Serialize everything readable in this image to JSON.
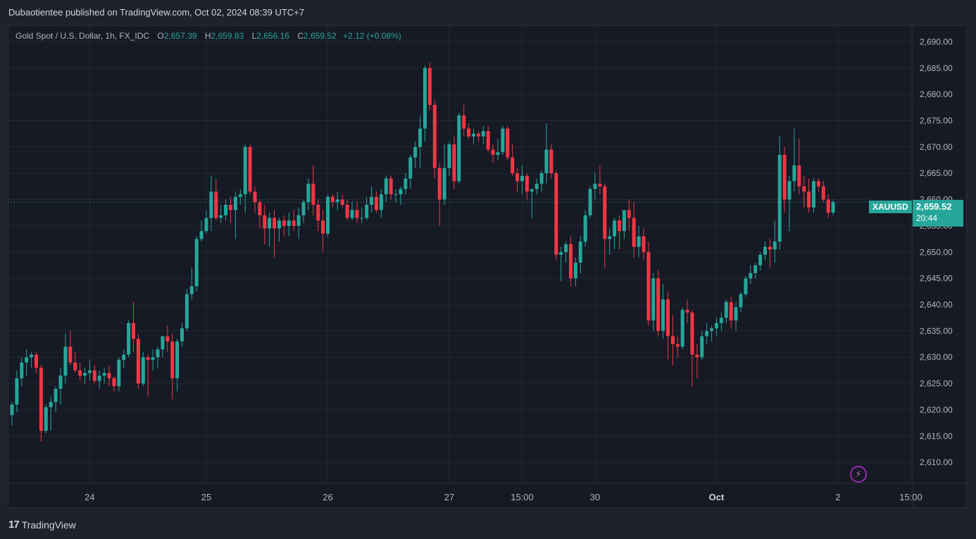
{
  "header": {
    "published": "Dubaotientee published on TradingView.com, Oct 02, 2024 08:39 UTC+7"
  },
  "legend": {
    "symbol": "Gold Spot / U.S. Dollar, 1h, FX_IDC",
    "o_label": "O",
    "o_value": "2,657.39",
    "h_label": "H",
    "h_value": "2,659.83",
    "l_label": "L",
    "l_value": "2,656.16",
    "c_label": "C",
    "c_value": "2,659.52",
    "change": "+2.12 (+0.08%)"
  },
  "price_tag": {
    "symbol": "XAUUSD",
    "price": "2,659.52",
    "countdown": "20:44"
  },
  "footer": {
    "brand": "TradingView"
  },
  "colors": {
    "up": "#26a69a",
    "down": "#f23645",
    "background": "#161a25",
    "grid": "#232733"
  },
  "chart_data": {
    "type": "candlestick",
    "title": "",
    "xlabel": "",
    "ylabel": "",
    "ylim": [
      2606,
      2693
    ],
    "y_ticks": [
      "2,690.00",
      "2,685.00",
      "2,680.00",
      "2,675.00",
      "2,670.00",
      "2,665.00",
      "2,660.00",
      "2,655.00",
      "2,650.00",
      "2,645.00",
      "2,640.00",
      "2,635.00",
      "2,630.00",
      "2,625.00",
      "2,620.00",
      "2,615.00",
      "2,610.00"
    ],
    "x_ticks": [
      {
        "label": "24",
        "i": 16
      },
      {
        "label": "25",
        "i": 40
      },
      {
        "label": "26",
        "i": 65
      },
      {
        "label": "27",
        "i": 90
      },
      {
        "label": "15:00",
        "i": 105
      },
      {
        "label": "30",
        "i": 120
      },
      {
        "label": "Oct",
        "i": 145
      },
      {
        "label": "2",
        "i": 170
      },
      {
        "label": "15:00",
        "i": 185
      }
    ],
    "last_price": 2659.52,
    "candles": [
      [
        2619.0,
        2621.5,
        2617.0,
        2621.0
      ],
      [
        2621.0,
        2627.5,
        2619.5,
        2626.0
      ],
      [
        2626.0,
        2630.0,
        2624.5,
        2629.0
      ],
      [
        2629.0,
        2631.5,
        2626.5,
        2630.0
      ],
      [
        2630.0,
        2631.0,
        2628.0,
        2630.5
      ],
      [
        2630.5,
        2631.0,
        2627.0,
        2628.0
      ],
      [
        2628.0,
        2628.5,
        2614.0,
        2616.0
      ],
      [
        2616.0,
        2621.0,
        2615.5,
        2620.5
      ],
      [
        2620.5,
        2622.5,
        2616.0,
        2621.5
      ],
      [
        2621.5,
        2624.5,
        2619.5,
        2624.0
      ],
      [
        2624.0,
        2628.0,
        2621.0,
        2626.5
      ],
      [
        2626.5,
        2634.5,
        2625.0,
        2632.0
      ],
      [
        2632.0,
        2635.0,
        2628.5,
        2629.0
      ],
      [
        2629.0,
        2631.0,
        2627.0,
        2627.5
      ],
      [
        2627.5,
        2629.0,
        2625.5,
        2626.5
      ],
      [
        2626.5,
        2628.0,
        2625.0,
        2627.0
      ],
      [
        2627.0,
        2629.5,
        2625.5,
        2627.5
      ],
      [
        2627.5,
        2628.5,
        2625.0,
        2625.5
      ],
      [
        2625.5,
        2627.5,
        2624.0,
        2626.5
      ],
      [
        2626.5,
        2628.0,
        2625.0,
        2627.0
      ],
      [
        2627.0,
        2628.5,
        2624.5,
        2626.0
      ],
      [
        2626.0,
        2626.5,
        2623.5,
        2624.5
      ],
      [
        2624.5,
        2630.0,
        2623.5,
        2629.5
      ],
      [
        2629.5,
        2631.5,
        2628.0,
        2630.5
      ],
      [
        2630.5,
        2637.0,
        2630.0,
        2636.5
      ],
      [
        2636.5,
        2640.5,
        2631.0,
        2633.5
      ],
      [
        2633.5,
        2634.5,
        2624.0,
        2625.0
      ],
      [
        2625.0,
        2631.0,
        2624.5,
        2630.0
      ],
      [
        2630.0,
        2630.5,
        2622.5,
        2629.5
      ],
      [
        2629.5,
        2631.5,
        2627.5,
        2630.0
      ],
      [
        2630.0,
        2632.0,
        2628.0,
        2631.5
      ],
      [
        2631.5,
        2634.0,
        2630.0,
        2634.0
      ],
      [
        2634.0,
        2636.0,
        2631.0,
        2633.0
      ],
      [
        2633.0,
        2634.5,
        2622.0,
        2626.0
      ],
      [
        2626.0,
        2633.5,
        2623.5,
        2633.0
      ],
      [
        2633.0,
        2636.5,
        2632.0,
        2635.5
      ],
      [
        2635.5,
        2643.0,
        2635.0,
        2642.0
      ],
      [
        2642.0,
        2647.0,
        2641.0,
        2643.5
      ],
      [
        2643.5,
        2653.0,
        2642.5,
        2652.5
      ],
      [
        2652.5,
        2656.0,
        2652.0,
        2654.0
      ],
      [
        2654.0,
        2658.0,
        2653.5,
        2656.5
      ],
      [
        2656.5,
        2664.5,
        2654.0,
        2661.5
      ],
      [
        2661.5,
        2664.0,
        2656.0,
        2656.5
      ],
      [
        2656.5,
        2659.0,
        2655.5,
        2657.0
      ],
      [
        2657.0,
        2660.0,
        2656.0,
        2659.0
      ],
      [
        2659.0,
        2660.5,
        2655.5,
        2658.0
      ],
      [
        2658.0,
        2661.5,
        2652.5,
        2660.5
      ],
      [
        2660.5,
        2662.0,
        2659.0,
        2661.0
      ],
      [
        2661.0,
        2670.5,
        2657.5,
        2670.0
      ],
      [
        2670.0,
        2670.5,
        2661.0,
        2661.5
      ],
      [
        2661.5,
        2662.5,
        2657.5,
        2659.5
      ],
      [
        2659.5,
        2660.0,
        2654.5,
        2657.0
      ],
      [
        2657.0,
        2659.0,
        2651.5,
        2654.5
      ],
      [
        2654.5,
        2657.5,
        2651.0,
        2656.5
      ],
      [
        2656.5,
        2658.0,
        2649.0,
        2654.5
      ],
      [
        2654.5,
        2656.5,
        2652.0,
        2656.0
      ],
      [
        2656.0,
        2657.0,
        2653.0,
        2655.0
      ],
      [
        2655.0,
        2657.5,
        2653.0,
        2656.0
      ],
      [
        2656.0,
        2658.0,
        2654.0,
        2655.0
      ],
      [
        2655.0,
        2658.5,
        2652.5,
        2657.0
      ],
      [
        2657.0,
        2660.0,
        2655.5,
        2659.5
      ],
      [
        2659.5,
        2664.0,
        2658.0,
        2663.0
      ],
      [
        2663.0,
        2666.5,
        2657.0,
        2659.0
      ],
      [
        2659.0,
        2660.0,
        2654.0,
        2656.0
      ],
      [
        2656.0,
        2658.0,
        2650.0,
        2653.5
      ],
      [
        2653.5,
        2661.0,
        2653.0,
        2660.5
      ],
      [
        2660.5,
        2661.0,
        2658.5,
        2659.5
      ],
      [
        2659.5,
        2661.5,
        2658.0,
        2660.0
      ],
      [
        2660.0,
        2661.0,
        2658.5,
        2659.0
      ],
      [
        2659.0,
        2660.0,
        2656.0,
        2656.5
      ],
      [
        2656.5,
        2659.5,
        2656.0,
        2658.0
      ],
      [
        2658.0,
        2659.5,
        2655.5,
        2656.5
      ],
      [
        2656.5,
        2658.5,
        2655.5,
        2656.5
      ],
      [
        2656.5,
        2660.5,
        2656.0,
        2659.0
      ],
      [
        2659.0,
        2662.5,
        2657.5,
        2660.5
      ],
      [
        2660.5,
        2661.5,
        2657.5,
        2658.0
      ],
      [
        2658.0,
        2662.0,
        2656.5,
        2661.0
      ],
      [
        2661.0,
        2664.5,
        2659.5,
        2664.0
      ],
      [
        2664.0,
        2664.5,
        2660.0,
        2661.0
      ],
      [
        2661.0,
        2662.0,
        2659.5,
        2661.0
      ],
      [
        2661.0,
        2662.5,
        2659.0,
        2662.0
      ],
      [
        2662.0,
        2665.0,
        2661.0,
        2664.0
      ],
      [
        2664.0,
        2668.5,
        2662.0,
        2668.0
      ],
      [
        2668.0,
        2671.0,
        2666.0,
        2670.0
      ],
      [
        2670.0,
        2676.0,
        2666.0,
        2673.5
      ],
      [
        2673.5,
        2685.5,
        2671.0,
        2685.0
      ],
      [
        2685.0,
        2686.0,
        2677.0,
        2678.0
      ],
      [
        2678.0,
        2679.0,
        2664.0,
        2666.0
      ],
      [
        2666.0,
        2667.0,
        2655.0,
        2660.0
      ],
      [
        2660.0,
        2670.5,
        2659.0,
        2666.0
      ],
      [
        2666.0,
        2671.0,
        2664.5,
        2670.5
      ],
      [
        2670.5,
        2672.0,
        2662.0,
        2663.5
      ],
      [
        2663.5,
        2676.5,
        2663.0,
        2676.0
      ],
      [
        2676.0,
        2678.0,
        2672.0,
        2673.5
      ],
      [
        2673.5,
        2674.5,
        2671.5,
        2672.0
      ],
      [
        2672.0,
        2673.5,
        2670.5,
        2672.5
      ],
      [
        2672.5,
        2673.0,
        2671.0,
        2672.0
      ],
      [
        2672.0,
        2674.0,
        2670.5,
        2673.0
      ],
      [
        2673.0,
        2674.0,
        2669.0,
        2669.5
      ],
      [
        2669.5,
        2670.5,
        2667.0,
        2668.5
      ],
      [
        2668.5,
        2671.5,
        2667.5,
        2669.0
      ],
      [
        2669.0,
        2674.0,
        2668.5,
        2673.5
      ],
      [
        2673.5,
        2674.0,
        2667.5,
        2668.0
      ],
      [
        2668.0,
        2670.5,
        2664.5,
        2665.0
      ],
      [
        2665.0,
        2666.0,
        2661.5,
        2663.5
      ],
      [
        2663.5,
        2666.5,
        2661.0,
        2664.5
      ],
      [
        2664.5,
        2665.0,
        2660.0,
        2661.5
      ],
      [
        2661.5,
        2662.0,
        2656.5,
        2662.0
      ],
      [
        2662.0,
        2664.0,
        2661.0,
        2663.0
      ],
      [
        2663.0,
        2665.5,
        2661.5,
        2665.0
      ],
      [
        2665.0,
        2674.5,
        2663.0,
        2669.5
      ],
      [
        2669.5,
        2670.5,
        2664.0,
        2665.0
      ],
      [
        2665.0,
        2665.5,
        2648.5,
        2649.5
      ],
      [
        2649.5,
        2651.0,
        2644.5,
        2650.0
      ],
      [
        2650.0,
        2652.0,
        2648.0,
        2651.5
      ],
      [
        2651.5,
        2653.0,
        2643.5,
        2645.0
      ],
      [
        2645.0,
        2649.0,
        2643.5,
        2648.0
      ],
      [
        2648.0,
        2653.0,
        2646.0,
        2652.0
      ],
      [
        2652.0,
        2658.0,
        2651.0,
        2657.0
      ],
      [
        2657.0,
        2662.5,
        2656.5,
        2662.0
      ],
      [
        2662.0,
        2665.0,
        2660.0,
        2663.0
      ],
      [
        2663.0,
        2666.5,
        2661.0,
        2662.5
      ],
      [
        2662.5,
        2663.0,
        2647.0,
        2652.5
      ],
      [
        2652.5,
        2654.5,
        2649.5,
        2653.0
      ],
      [
        2653.0,
        2656.5,
        2650.5,
        2656.0
      ],
      [
        2656.0,
        2657.0,
        2650.5,
        2654.0
      ],
      [
        2654.0,
        2658.0,
        2652.5,
        2658.0
      ],
      [
        2658.0,
        2660.0,
        2654.0,
        2656.5
      ],
      [
        2656.5,
        2659.5,
        2649.0,
        2651.0
      ],
      [
        2651.0,
        2655.0,
        2649.0,
        2653.0
      ],
      [
        2653.0,
        2654.5,
        2648.5,
        2650.0
      ],
      [
        2650.0,
        2652.0,
        2636.0,
        2637.0
      ],
      [
        2637.0,
        2646.0,
        2635.0,
        2645.0
      ],
      [
        2645.0,
        2646.5,
        2634.0,
        2635.0
      ],
      [
        2635.0,
        2644.0,
        2633.5,
        2641.0
      ],
      [
        2641.0,
        2642.5,
        2629.5,
        2634.0
      ],
      [
        2634.0,
        2638.0,
        2628.5,
        2632.5
      ],
      [
        2632.5,
        2634.0,
        2630.0,
        2632.0
      ],
      [
        2632.0,
        2639.5,
        2631.5,
        2639.0
      ],
      [
        2639.0,
        2641.0,
        2636.5,
        2638.5
      ],
      [
        2638.5,
        2639.0,
        2624.5,
        2630.5
      ],
      [
        2630.5,
        2632.5,
        2626.0,
        2630.0
      ],
      [
        2630.0,
        2635.0,
        2629.5,
        2634.0
      ],
      [
        2634.0,
        2636.5,
        2632.5,
        2635.0
      ],
      [
        2635.0,
        2636.0,
        2633.0,
        2635.5
      ],
      [
        2635.5,
        2637.5,
        2634.0,
        2636.5
      ],
      [
        2636.5,
        2638.5,
        2635.0,
        2637.5
      ],
      [
        2637.5,
        2641.0,
        2636.5,
        2640.5
      ],
      [
        2640.5,
        2641.5,
        2635.5,
        2637.0
      ],
      [
        2637.0,
        2640.5,
        2635.0,
        2639.5
      ],
      [
        2639.5,
        2642.5,
        2638.5,
        2642.0
      ],
      [
        2642.0,
        2645.5,
        2641.5,
        2645.0
      ],
      [
        2645.0,
        2647.5,
        2644.0,
        2646.0
      ],
      [
        2646.0,
        2648.0,
        2645.0,
        2647.5
      ],
      [
        2647.5,
        2650.0,
        2646.5,
        2649.5
      ],
      [
        2649.5,
        2652.0,
        2648.5,
        2651.0
      ],
      [
        2651.0,
        2652.5,
        2647.0,
        2650.5
      ],
      [
        2650.5,
        2656.0,
        2648.0,
        2652.0
      ],
      [
        2652.0,
        2672.0,
        2650.5,
        2668.5
      ],
      [
        2668.5,
        2670.0,
        2657.5,
        2660.0
      ],
      [
        2660.0,
        2664.5,
        2654.0,
        2663.5
      ],
      [
        2663.5,
        2673.5,
        2661.5,
        2666.5
      ],
      [
        2666.5,
        2671.5,
        2661.0,
        2662.5
      ],
      [
        2662.5,
        2664.5,
        2658.5,
        2661.5
      ],
      [
        2661.5,
        2664.0,
        2657.5,
        2658.5
      ],
      [
        2658.5,
        2664.0,
        2657.5,
        2663.5
      ],
      [
        2663.5,
        2664.0,
        2661.5,
        2662.5
      ],
      [
        2662.5,
        2663.5,
        2659.5,
        2660.0
      ],
      [
        2660.0,
        2661.0,
        2656.5,
        2657.5
      ],
      [
        2657.5,
        2660.0,
        2657.0,
        2659.5
      ]
    ]
  }
}
